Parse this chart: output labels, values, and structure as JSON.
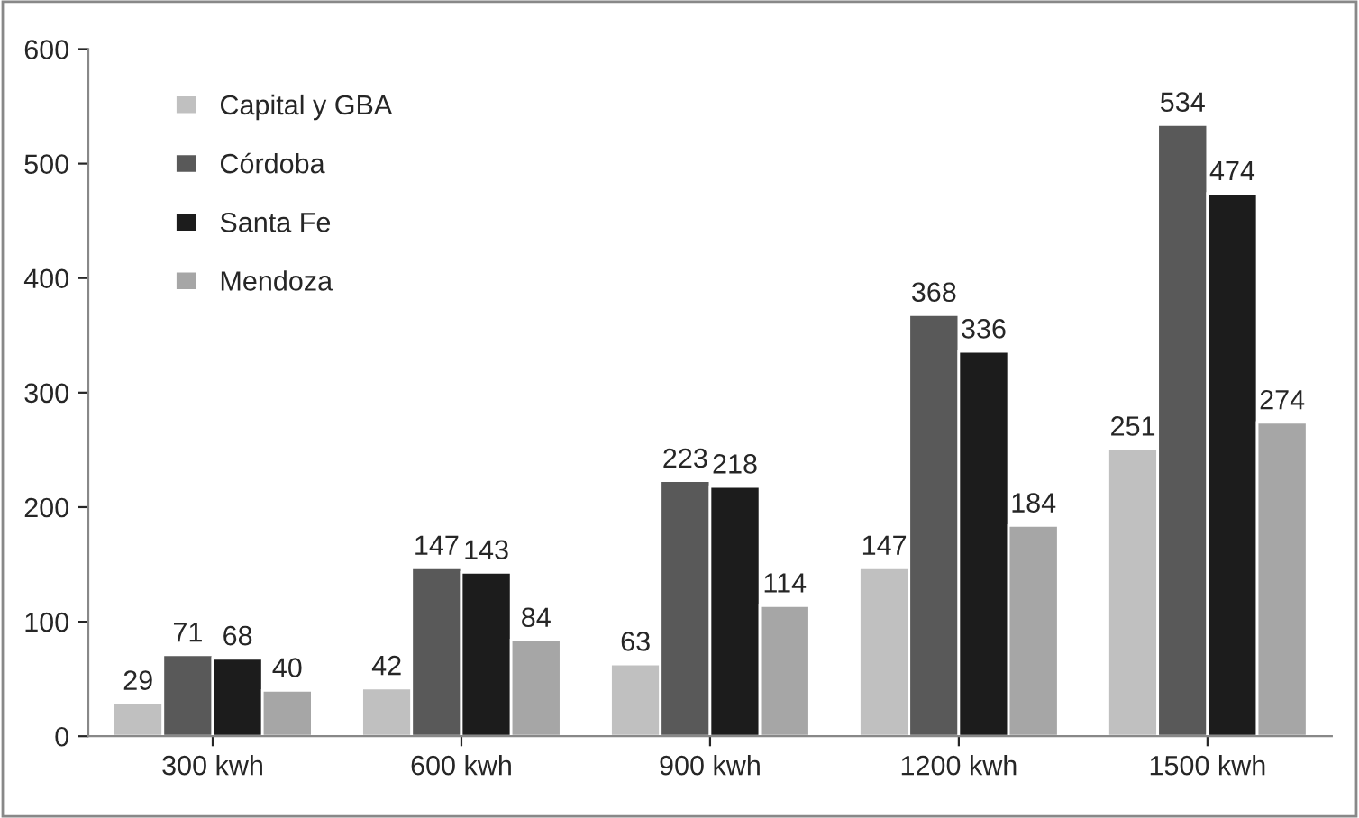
{
  "chart_data": {
    "type": "bar",
    "categories": [
      "300 kwh",
      "600 kwh",
      "900 kwh",
      "1200 kwh",
      "1500 kwh"
    ],
    "series": [
      {
        "name": "Capital y GBA",
        "color": "#c0c0c0",
        "values": [
          29,
          42,
          63,
          147,
          251
        ]
      },
      {
        "name": "Córdoba",
        "color": "#595959",
        "values": [
          71,
          147,
          223,
          368,
          534
        ]
      },
      {
        "name": "Santa Fe",
        "color": "#1c1c1c",
        "values": [
          68,
          143,
          218,
          336,
          474
        ]
      },
      {
        "name": "Mendoza",
        "color": "#a6a6a6",
        "values": [
          40,
          84,
          114,
          184,
          274
        ]
      }
    ],
    "ylim": [
      0,
      600
    ],
    "yticks": [
      0,
      100,
      200,
      300,
      400,
      500,
      600
    ],
    "data_labels": true,
    "legend": "top left",
    "grid": false
  }
}
